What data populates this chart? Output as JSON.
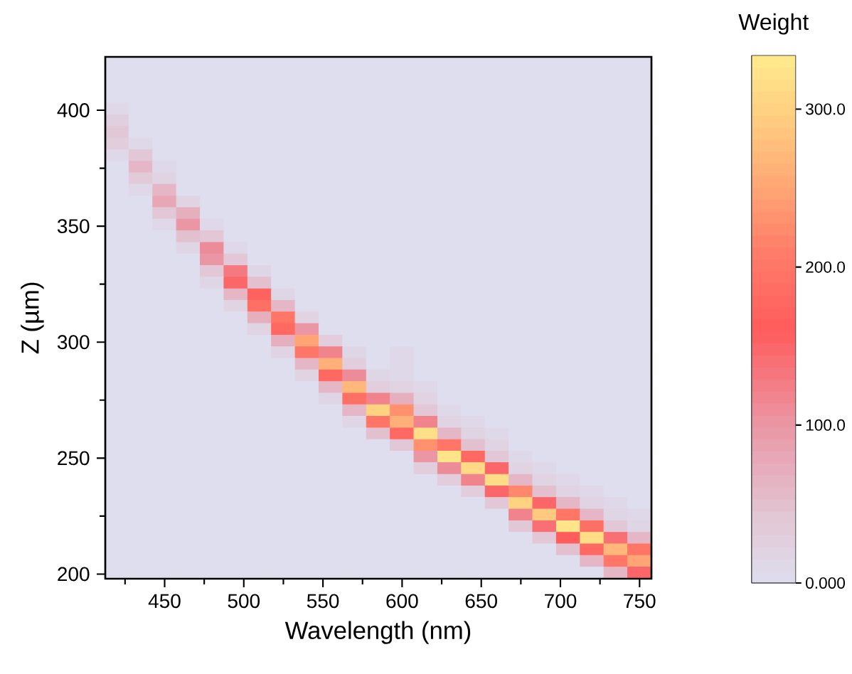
{
  "chart_data": {
    "type": "heatmap",
    "xlabel": "Wavelength (nm)",
    "ylabel": "Z (µm)",
    "clabel": "Weight",
    "x": [
      420,
      435,
      450,
      465,
      480,
      495,
      510,
      525,
      540,
      555,
      570,
      585,
      600,
      615,
      630,
      645,
      660,
      675,
      690,
      705,
      720,
      735,
      750
    ],
    "y": [
      420.5,
      415.5,
      410.5,
      405.5,
      400.5,
      395.5,
      390.5,
      385.5,
      380.5,
      375.5,
      370.5,
      365.5,
      360.5,
      355.5,
      350.5,
      345.5,
      340.5,
      335.5,
      330.5,
      325.5,
      320.5,
      315.5,
      310.5,
      305.5,
      300.5,
      295.5,
      290.5,
      285.5,
      280.5,
      275.5,
      270.5,
      265.5,
      260.5,
      255.5,
      250.5,
      245.5,
      240.5,
      235.5,
      230.5,
      225.5,
      220.5,
      215.5,
      210.5,
      205.5,
      200.5
    ],
    "cells": [
      [
        0,
        0,
        0,
        0,
        0,
        0,
        0,
        0,
        0,
        0,
        0,
        0,
        0,
        0,
        0,
        0,
        0,
        0,
        0,
        0,
        0,
        0,
        0
      ],
      [
        0,
        0,
        0,
        0,
        0,
        0,
        0,
        0,
        0,
        0,
        0,
        0,
        0,
        0,
        0,
        0,
        0,
        0,
        0,
        0,
        0,
        0,
        0
      ],
      [
        0,
        0,
        0,
        0,
        0,
        0,
        0,
        0,
        0,
        0,
        0,
        0,
        0,
        0,
        0,
        0,
        0,
        0,
        0,
        0,
        0,
        0,
        0
      ],
      [
        0,
        0,
        0,
        0,
        0,
        0,
        0,
        0,
        0,
        0,
        0,
        0,
        0,
        0,
        0,
        0,
        0,
        0,
        0,
        0,
        0,
        0,
        0
      ],
      [
        10,
        0,
        0,
        0,
        0,
        0,
        0,
        0,
        0,
        0,
        0,
        0,
        0,
        0,
        0,
        0,
        0,
        0,
        0,
        0,
        0,
        0,
        0
      ],
      [
        25,
        0,
        0,
        0,
        0,
        0,
        0,
        0,
        0,
        0,
        0,
        0,
        0,
        0,
        0,
        0,
        0,
        0,
        0,
        0,
        0,
        0,
        0
      ],
      [
        40,
        0,
        0,
        0,
        0,
        0,
        0,
        0,
        0,
        0,
        0,
        0,
        0,
        0,
        0,
        0,
        0,
        0,
        0,
        0,
        0,
        0,
        0
      ],
      [
        30,
        10,
        0,
        0,
        0,
        0,
        0,
        0,
        0,
        0,
        0,
        0,
        0,
        0,
        0,
        0,
        0,
        0,
        0,
        0,
        0,
        0,
        0
      ],
      [
        10,
        40,
        0,
        0,
        0,
        0,
        0,
        0,
        0,
        0,
        0,
        0,
        0,
        0,
        0,
        0,
        0,
        0,
        0,
        0,
        0,
        0,
        0
      ],
      [
        0,
        60,
        10,
        0,
        0,
        0,
        0,
        0,
        0,
        0,
        0,
        0,
        0,
        0,
        0,
        0,
        0,
        0,
        0,
        0,
        0,
        0,
        0
      ],
      [
        0,
        35,
        20,
        0,
        0,
        0,
        0,
        0,
        0,
        0,
        0,
        0,
        0,
        0,
        0,
        0,
        0,
        0,
        0,
        0,
        0,
        0,
        0
      ],
      [
        0,
        10,
        60,
        0,
        0,
        0,
        0,
        0,
        0,
        0,
        0,
        0,
        0,
        0,
        0,
        0,
        0,
        0,
        0,
        0,
        0,
        0,
        0
      ],
      [
        0,
        0,
        80,
        20,
        0,
        0,
        0,
        0,
        0,
        0,
        0,
        0,
        0,
        0,
        0,
        0,
        0,
        0,
        0,
        0,
        0,
        0,
        0
      ],
      [
        0,
        0,
        40,
        70,
        0,
        0,
        0,
        0,
        0,
        0,
        0,
        0,
        0,
        0,
        0,
        0,
        0,
        0,
        0,
        0,
        0,
        0,
        0
      ],
      [
        0,
        0,
        10,
        100,
        10,
        0,
        0,
        0,
        0,
        0,
        0,
        0,
        0,
        0,
        0,
        0,
        0,
        0,
        0,
        0,
        0,
        0,
        0
      ],
      [
        0,
        0,
        0,
        50,
        40,
        0,
        0,
        0,
        0,
        0,
        0,
        0,
        0,
        0,
        0,
        0,
        0,
        0,
        0,
        0,
        0,
        0,
        0
      ],
      [
        0,
        0,
        0,
        15,
        110,
        10,
        0,
        0,
        0,
        0,
        0,
        0,
        0,
        0,
        0,
        0,
        0,
        0,
        0,
        0,
        0,
        0,
        0
      ],
      [
        0,
        0,
        0,
        0,
        100,
        40,
        0,
        0,
        0,
        0,
        0,
        0,
        0,
        0,
        0,
        0,
        0,
        0,
        0,
        0,
        0,
        0,
        0
      ],
      [
        0,
        0,
        0,
        0,
        40,
        130,
        15,
        0,
        0,
        0,
        0,
        0,
        0,
        0,
        0,
        0,
        0,
        0,
        0,
        0,
        0,
        0,
        0
      ],
      [
        0,
        0,
        0,
        0,
        15,
        150,
        50,
        0,
        0,
        0,
        0,
        0,
        0,
        0,
        0,
        0,
        0,
        0,
        0,
        0,
        0,
        0,
        0
      ],
      [
        0,
        0,
        0,
        0,
        0,
        60,
        170,
        15,
        0,
        0,
        0,
        0,
        0,
        0,
        0,
        0,
        0,
        0,
        0,
        0,
        0,
        0,
        0
      ],
      [
        0,
        0,
        0,
        0,
        0,
        20,
        190,
        60,
        0,
        0,
        0,
        0,
        0,
        0,
        0,
        0,
        0,
        0,
        0,
        0,
        0,
        0,
        0
      ],
      [
        0,
        0,
        0,
        0,
        0,
        0,
        70,
        200,
        20,
        0,
        0,
        0,
        0,
        0,
        0,
        0,
        0,
        0,
        0,
        0,
        0,
        0,
        0
      ],
      [
        0,
        0,
        0,
        0,
        0,
        0,
        20,
        180,
        100,
        0,
        0,
        0,
        0,
        0,
        0,
        0,
        0,
        0,
        0,
        0,
        0,
        0,
        0
      ],
      [
        0,
        0,
        0,
        0,
        0,
        0,
        0,
        70,
        250,
        30,
        0,
        0,
        0,
        0,
        0,
        0,
        0,
        0,
        0,
        0,
        0,
        0,
        0
      ],
      [
        0,
        0,
        0,
        0,
        0,
        0,
        0,
        20,
        200,
        120,
        15,
        0,
        10,
        0,
        0,
        0,
        0,
        0,
        0,
        0,
        0,
        0,
        0
      ],
      [
        0,
        0,
        0,
        0,
        0,
        0,
        0,
        0,
        60,
        260,
        30,
        0,
        10,
        0,
        0,
        0,
        0,
        0,
        0,
        0,
        0,
        0,
        0
      ],
      [
        0,
        0,
        0,
        0,
        0,
        0,
        0,
        0,
        20,
        180,
        110,
        15,
        10,
        0,
        0,
        0,
        0,
        0,
        0,
        0,
        0,
        0,
        0
      ],
      [
        0,
        0,
        0,
        0,
        0,
        0,
        0,
        0,
        0,
        60,
        270,
        30,
        20,
        10,
        0,
        0,
        0,
        0,
        0,
        0,
        0,
        0,
        0
      ],
      [
        0,
        0,
        0,
        0,
        0,
        0,
        0,
        0,
        0,
        15,
        190,
        120,
        70,
        20,
        0,
        0,
        0,
        0,
        0,
        0,
        0,
        0,
        0
      ],
      [
        0,
        0,
        0,
        0,
        0,
        0,
        0,
        0,
        0,
        0,
        60,
        300,
        230,
        40,
        10,
        0,
        0,
        0,
        0,
        0,
        0,
        0,
        0
      ],
      [
        0,
        0,
        0,
        0,
        0,
        0,
        0,
        0,
        0,
        0,
        15,
        200,
        260,
        120,
        20,
        10,
        0,
        0,
        0,
        0,
        0,
        0,
        0
      ],
      [
        0,
        0,
        0,
        0,
        0,
        0,
        0,
        0,
        0,
        0,
        0,
        50,
        180,
        320,
        60,
        20,
        10,
        0,
        0,
        0,
        0,
        0,
        0
      ],
      [
        0,
        0,
        0,
        0,
        0,
        0,
        0,
        0,
        0,
        0,
        0,
        0,
        40,
        230,
        200,
        50,
        20,
        0,
        0,
        0,
        0,
        0,
        0
      ],
      [
        0,
        0,
        0,
        0,
        0,
        0,
        0,
        0,
        0,
        0,
        0,
        0,
        0,
        100,
        325,
        180,
        40,
        10,
        0,
        0,
        0,
        0,
        0
      ],
      [
        0,
        0,
        0,
        0,
        0,
        0,
        0,
        0,
        0,
        0,
        0,
        0,
        0,
        30,
        110,
        310,
        150,
        20,
        10,
        0,
        0,
        0,
        0
      ],
      [
        0,
        0,
        0,
        0,
        0,
        0,
        0,
        0,
        0,
        0,
        0,
        0,
        0,
        0,
        30,
        120,
        315,
        60,
        20,
        10,
        0,
        0,
        0
      ],
      [
        0,
        0,
        0,
        0,
        0,
        0,
        0,
        0,
        0,
        0,
        0,
        0,
        0,
        0,
        0,
        30,
        150,
        220,
        50,
        20,
        10,
        0,
        0
      ],
      [
        0,
        0,
        0,
        0,
        0,
        0,
        0,
        0,
        0,
        0,
        0,
        0,
        0,
        0,
        0,
        0,
        40,
        300,
        150,
        60,
        20,
        10,
        0
      ],
      [
        0,
        0,
        0,
        0,
        0,
        0,
        0,
        0,
        0,
        0,
        0,
        0,
        0,
        0,
        0,
        0,
        0,
        120,
        290,
        200,
        60,
        15,
        10
      ],
      [
        0,
        0,
        0,
        0,
        0,
        0,
        0,
        0,
        0,
        0,
        0,
        0,
        0,
        0,
        0,
        0,
        0,
        40,
        140,
        325,
        190,
        40,
        15
      ],
      [
        0,
        0,
        0,
        0,
        0,
        0,
        0,
        0,
        0,
        0,
        0,
        0,
        0,
        0,
        0,
        0,
        0,
        0,
        40,
        160,
        315,
        140,
        60
      ],
      [
        0,
        0,
        0,
        0,
        0,
        0,
        0,
        0,
        0,
        0,
        0,
        0,
        0,
        0,
        0,
        0,
        0,
        0,
        0,
        50,
        180,
        270,
        200
      ],
      [
        0,
        0,
        0,
        0,
        0,
        0,
        0,
        0,
        0,
        0,
        0,
        0,
        0,
        0,
        0,
        0,
        0,
        0,
        0,
        0,
        60,
        200,
        250
      ],
      [
        0,
        0,
        0,
        0,
        0,
        0,
        0,
        0,
        0,
        0,
        0,
        0,
        0,
        0,
        0,
        0,
        0,
        0,
        0,
        0,
        0,
        60,
        150
      ]
    ],
    "xlim": [
      412.5,
      757.5
    ],
    "ylim": [
      198,
      423
    ],
    "xticks": [
      {
        "value": 425,
        "label": null
      },
      450,
      {
        "value": 475,
        "label": null
      },
      500,
      {
        "value": 525,
        "label": null
      },
      550,
      {
        "value": 575,
        "label": null
      },
      600,
      {
        "value": 625,
        "label": null
      },
      650,
      {
        "value": 675,
        "label": null
      },
      700,
      {
        "value": 725,
        "label": null
      },
      750
    ],
    "yticks": [
      200,
      {
        "value": 225,
        "label": null
      },
      250,
      {
        "value": 275,
        "label": null
      },
      300,
      {
        "value": 325,
        "label": null
      },
      350,
      {
        "value": 375,
        "label": null
      },
      400
    ],
    "clim": [
      0,
      334
    ],
    "cticks": [
      {
        "value": 0,
        "label": "0.000"
      },
      {
        "value": 100,
        "label": "100.0"
      },
      {
        "value": 200,
        "label": "200.0"
      },
      {
        "value": 300,
        "label": "300.0"
      }
    ]
  }
}
